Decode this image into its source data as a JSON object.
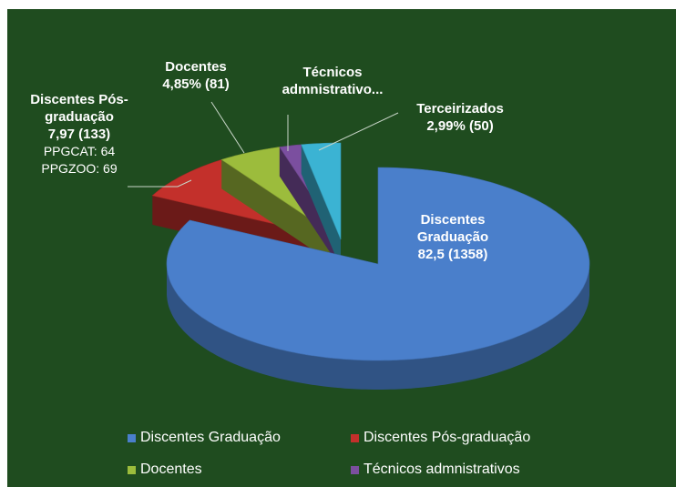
{
  "chart_data": {
    "type": "pie3d",
    "categories": [
      "Discentes Graduação",
      "Discentes Pós-graduação",
      "Docentes",
      "Técnicos admnistrativos",
      "Terceirizados"
    ],
    "values": [
      82.5,
      7.97,
      4.85,
      1.69,
      2.99
    ],
    "label_names": [
      "Discentes Graduação",
      "Discentes Pós-graduação",
      "Docentes",
      "Técnicos admnistrativo...",
      "Terceirizados"
    ],
    "value_labels": [
      "82,5 (1358)",
      "7,97 (133)",
      "4,85% (81)",
      null,
      "2,99% (50)"
    ],
    "colors": [
      "#4a7fcb",
      "#c3302b",
      "#9cbc3c",
      "#7b4f9f",
      "#3bb3d3"
    ],
    "annotations": [
      "PPGCAT: 64",
      "PPGZOO: 69"
    ],
    "legend": true
  }
}
